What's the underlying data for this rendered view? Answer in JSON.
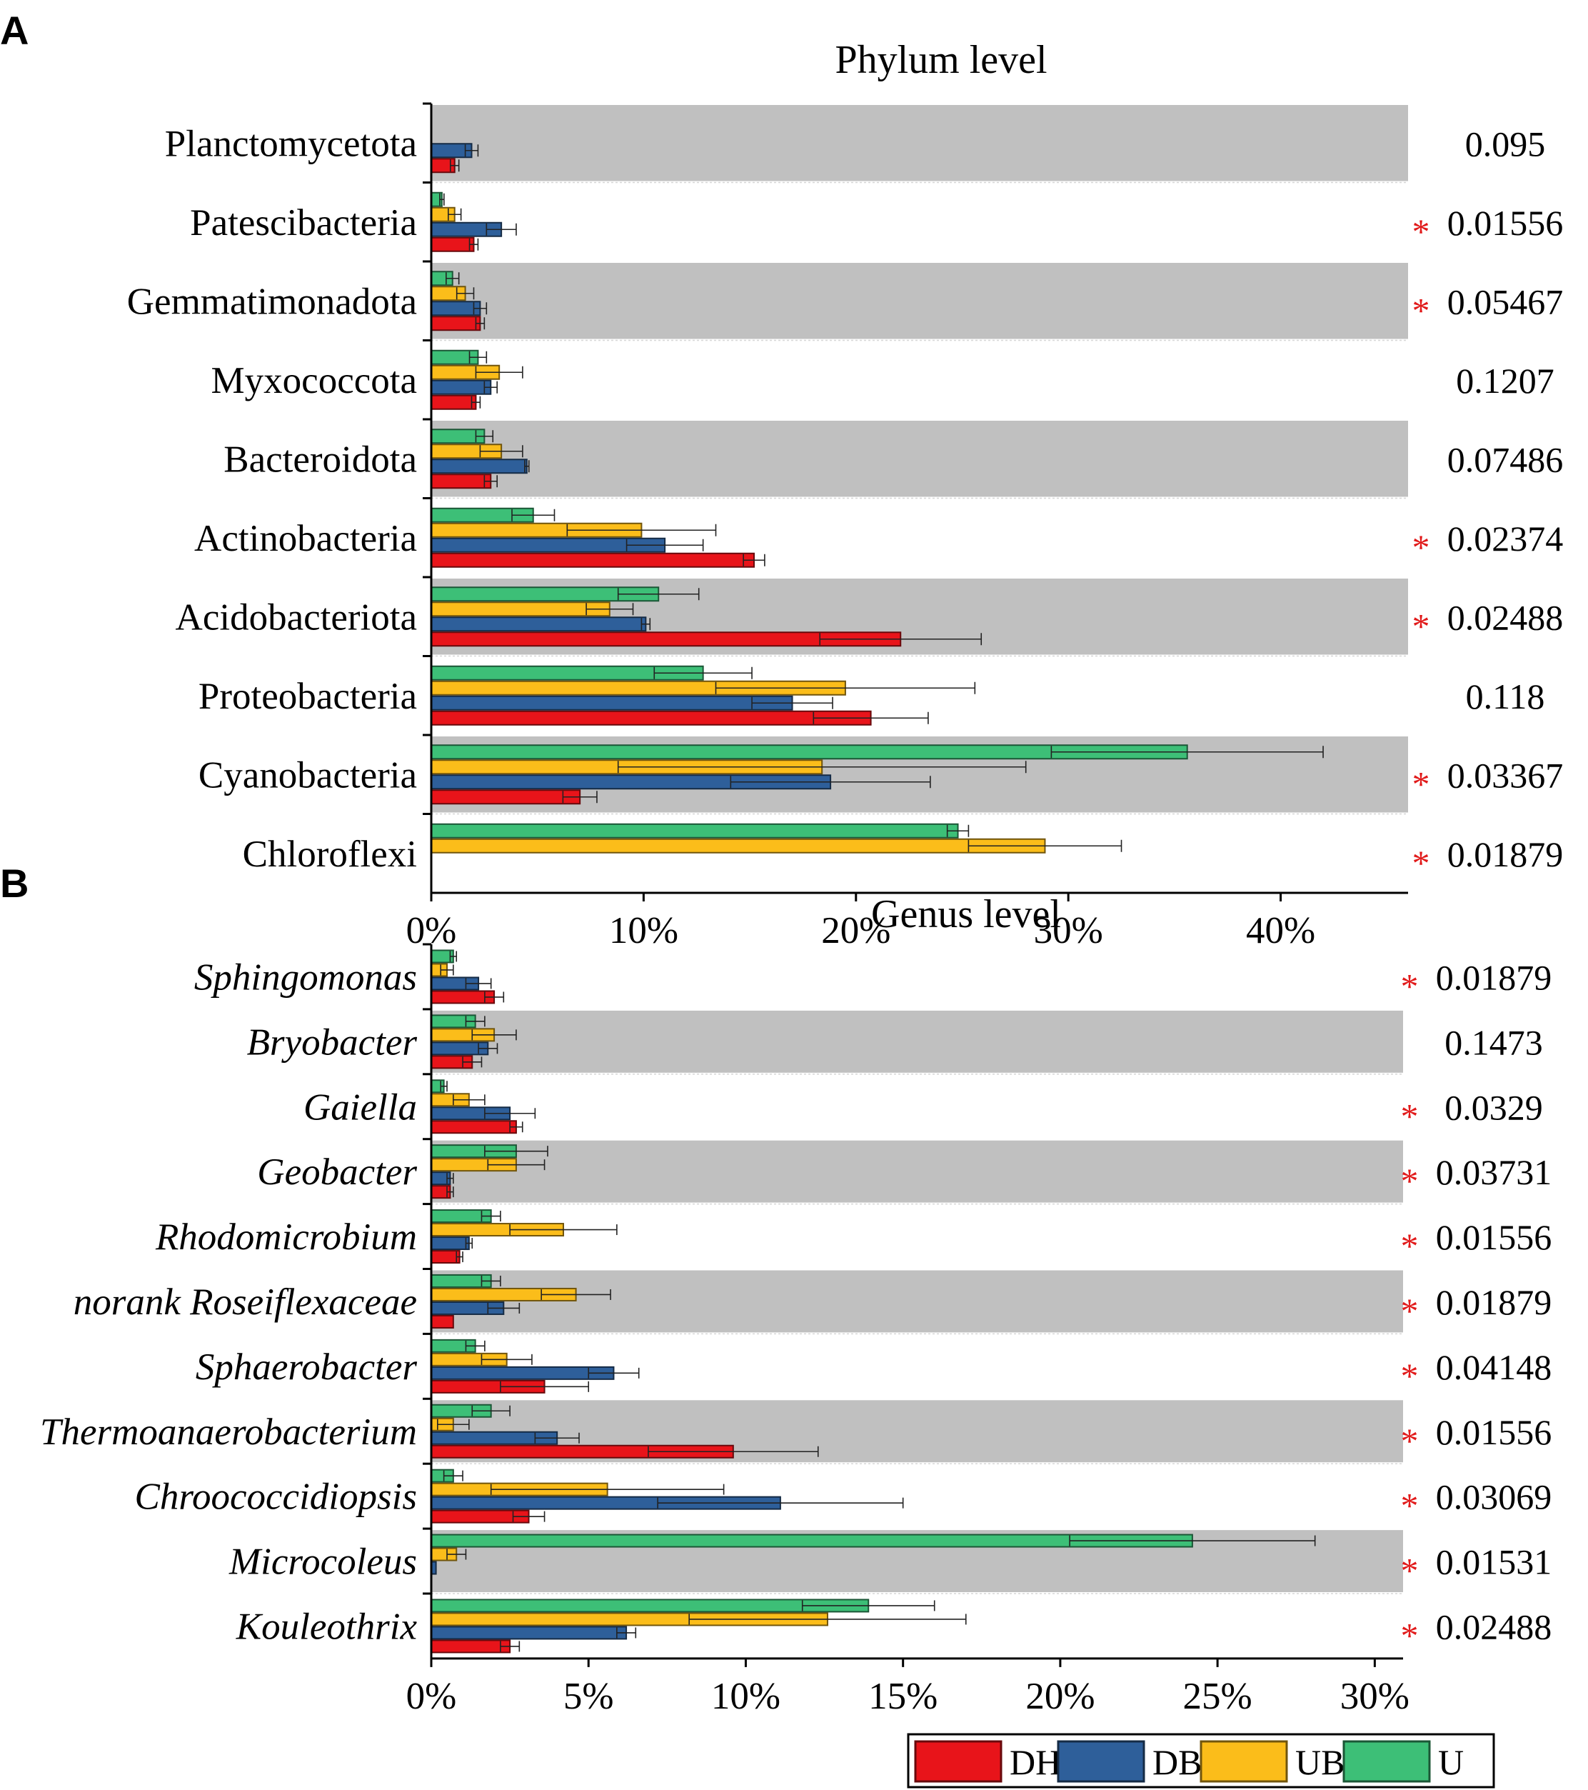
{
  "colors": {
    "DH": "#e8141a",
    "DB": "#2e5f9a",
    "UB": "#fbbd1a",
    "U": "#3dbf77",
    "band": "#c0c0c0",
    "star": "#e11a1a"
  },
  "legend": [
    {
      "key": "DH",
      "label": "DH"
    },
    {
      "key": "DB",
      "label": "DB"
    },
    {
      "key": "UB",
      "label": "UB"
    },
    {
      "key": "U",
      "label": "U"
    }
  ],
  "chart_data": [
    {
      "panel_label": "A",
      "type": "bar",
      "orientation": "horizontal",
      "title": "Phylum level",
      "italic_categories": false,
      "xlim": [
        0,
        46
      ],
      "xticks": [
        0,
        10,
        20,
        30,
        40
      ],
      "xtick_labels": [
        "0%",
        "10%",
        "20%",
        "30%",
        "40%"
      ],
      "series_order": [
        "U",
        "UB",
        "DB",
        "DH"
      ],
      "categories": [
        {
          "name": "Planctomycetota",
          "band": true,
          "values": {
            "U": 0,
            "UB": 0,
            "DB": 1.9,
            "DH": 1.1
          },
          "errors": {
            "U": 0,
            "UB": 0,
            "DB": 0.3,
            "DH": 0.2
          },
          "p": "0.095",
          "sig": false
        },
        {
          "name": "Patescibacteria",
          "band": false,
          "values": {
            "U": 0.5,
            "UB": 1.1,
            "DB": 3.3,
            "DH": 2.0
          },
          "errors": {
            "U": 0.1,
            "UB": 0.3,
            "DB": 0.7,
            "DH": 0.2
          },
          "p": "0.01556",
          "sig": true
        },
        {
          "name": "Gemmatimonadota",
          "band": true,
          "values": {
            "U": 1.0,
            "UB": 1.6,
            "DB": 2.3,
            "DH": 2.3
          },
          "errors": {
            "U": 0.3,
            "UB": 0.4,
            "DB": 0.3,
            "DH": 0.2
          },
          "p": "0.05467",
          "sig": true
        },
        {
          "name": "Myxococcota",
          "band": false,
          "values": {
            "U": 2.2,
            "UB": 3.2,
            "DB": 2.8,
            "DH": 2.1
          },
          "errors": {
            "U": 0.4,
            "UB": 1.1,
            "DB": 0.3,
            "DH": 0.2
          },
          "p": "0.1207",
          "sig": false
        },
        {
          "name": "Bacteroidota",
          "band": true,
          "values": {
            "U": 2.5,
            "UB": 3.3,
            "DB": 4.5,
            "DH": 2.8
          },
          "errors": {
            "U": 0.4,
            "UB": 1.0,
            "DB": 0.1,
            "DH": 0.3
          },
          "p": "0.07486",
          "sig": false
        },
        {
          "name": "Actinobacteria",
          "band": false,
          "values": {
            "U": 4.8,
            "UB": 9.9,
            "DB": 11.0,
            "DH": 15.2
          },
          "errors": {
            "U": 1.0,
            "UB": 3.5,
            "DB": 1.8,
            "DH": 0.5
          },
          "p": "0.02374",
          "sig": true
        },
        {
          "name": "Acidobacteriota",
          "band": true,
          "values": {
            "U": 10.7,
            "UB": 8.4,
            "DB": 10.1,
            "DH": 22.1
          },
          "errors": {
            "U": 1.9,
            "UB": 1.1,
            "DB": 0.2,
            "DH": 3.8
          },
          "p": "0.02488",
          "sig": true
        },
        {
          "name": "Proteobacteria",
          "band": false,
          "values": {
            "U": 12.8,
            "UB": 19.5,
            "DB": 17.0,
            "DH": 20.7
          },
          "errors": {
            "U": 2.3,
            "UB": 6.1,
            "DB": 1.9,
            "DH": 2.7
          },
          "p": "0.118",
          "sig": false
        },
        {
          "name": "Cyanobacteria",
          "band": true,
          "values": {
            "U": 35.6,
            "UB": 18.4,
            "DB": 18.8,
            "DH": 7.0
          },
          "errors": {
            "U": 6.4,
            "UB": 9.6,
            "DB": 4.7,
            "DH": 0.8
          },
          "p": "0.03367",
          "sig": true
        },
        {
          "name": "Chloroflexi",
          "band": false,
          "values": {
            "U": 24.8,
            "UB": 28.9,
            "DB": 0,
            "DH": 0
          },
          "errors": {
            "U": 0.5,
            "UB": 3.6,
            "DB": 0,
            "DH": 0
          },
          "p": "0.01879",
          "sig": true
        }
      ]
    },
    {
      "panel_label": "B",
      "type": "bar",
      "orientation": "horizontal",
      "title": "Genus level",
      "italic_categories": true,
      "xlim": [
        0,
        30.9
      ],
      "xticks": [
        0,
        5,
        10,
        15,
        20,
        25,
        30
      ],
      "xtick_labels": [
        "0%",
        "5%",
        "10%",
        "15%",
        "20%",
        "25%",
        "30%"
      ],
      "series_order": [
        "U",
        "UB",
        "DB",
        "DH"
      ],
      "categories": [
        {
          "name": "Sphingomonas",
          "band": false,
          "values": {
            "U": 0.7,
            "UB": 0.5,
            "DB": 1.5,
            "DH": 2.0
          },
          "errors": {
            "U": 0.1,
            "UB": 0.2,
            "DB": 0.4,
            "DH": 0.3
          },
          "p": "0.01879",
          "sig": true
        },
        {
          "name": "Bryobacter",
          "band": true,
          "values": {
            "U": 1.4,
            "UB": 2.0,
            "DB": 1.8,
            "DH": 1.3
          },
          "errors": {
            "U": 0.3,
            "UB": 0.7,
            "DB": 0.3,
            "DH": 0.3
          },
          "p": "0.1473",
          "sig": false
        },
        {
          "name": "Gaiella",
          "band": false,
          "values": {
            "U": 0.4,
            "UB": 1.2,
            "DB": 2.5,
            "DH": 2.7
          },
          "errors": {
            "U": 0.1,
            "UB": 0.5,
            "DB": 0.8,
            "DH": 0.2
          },
          "p": "0.0329",
          "sig": true
        },
        {
          "name": "Geobacter",
          "band": true,
          "values": {
            "U": 2.7,
            "UB": 2.7,
            "DB": 0.6,
            "DH": 0.6
          },
          "errors": {
            "U": 1.0,
            "UB": 0.9,
            "DB": 0.1,
            "DH": 0.1
          },
          "p": "0.03731",
          "sig": true
        },
        {
          "name": "Rhodomicrobium",
          "band": false,
          "values": {
            "U": 1.9,
            "UB": 4.2,
            "DB": 1.2,
            "DH": 0.9
          },
          "errors": {
            "U": 0.3,
            "UB": 1.7,
            "DB": 0.1,
            "DH": 0.1
          },
          "p": "0.01556",
          "sig": true
        },
        {
          "name": "norank Roseiflexaceae",
          "band": true,
          "values": {
            "U": 1.9,
            "UB": 4.6,
            "DB": 2.3,
            "DH": 0.7
          },
          "errors": {
            "U": 0.3,
            "UB": 1.1,
            "DB": 0.5,
            "DH": 0
          },
          "p": "0.01879",
          "sig": true
        },
        {
          "name": "Sphaerobacter",
          "band": false,
          "values": {
            "U": 1.4,
            "UB": 2.4,
            "DB": 5.8,
            "DH": 3.6
          },
          "errors": {
            "U": 0.3,
            "UB": 0.8,
            "DB": 0.8,
            "DH": 1.4
          },
          "p": "0.04148",
          "sig": true
        },
        {
          "name": "Thermoanaerobacterium",
          "band": true,
          "values": {
            "U": 1.9,
            "UB": 0.7,
            "DB": 4.0,
            "DH": 9.6
          },
          "errors": {
            "U": 0.6,
            "UB": 0.5,
            "DB": 0.7,
            "DH": 2.7
          },
          "p": "0.01556",
          "sig": true
        },
        {
          "name": "Chroococcidiopsis",
          "band": false,
          "values": {
            "U": 0.7,
            "UB": 5.6,
            "DB": 11.1,
            "DH": 3.1
          },
          "errors": {
            "U": 0.3,
            "UB": 3.7,
            "DB": 3.9,
            "DH": 0.5
          },
          "p": "0.03069",
          "sig": true
        },
        {
          "name": "Microcoleus",
          "band": true,
          "values": {
            "U": 24.2,
            "UB": 0.8,
            "DB": 0.15,
            "DH": 0
          },
          "errors": {
            "U": 3.9,
            "UB": 0.3,
            "DB": 0,
            "DH": 0
          },
          "p": "0.01531",
          "sig": true
        },
        {
          "name": "Kouleothrix",
          "band": false,
          "values": {
            "U": 13.9,
            "UB": 12.6,
            "DB": 6.2,
            "DH": 2.5
          },
          "errors": {
            "U": 2.1,
            "UB": 4.4,
            "DB": 0.3,
            "DH": 0.3
          },
          "p": "0.02488",
          "sig": true
        }
      ]
    }
  ]
}
